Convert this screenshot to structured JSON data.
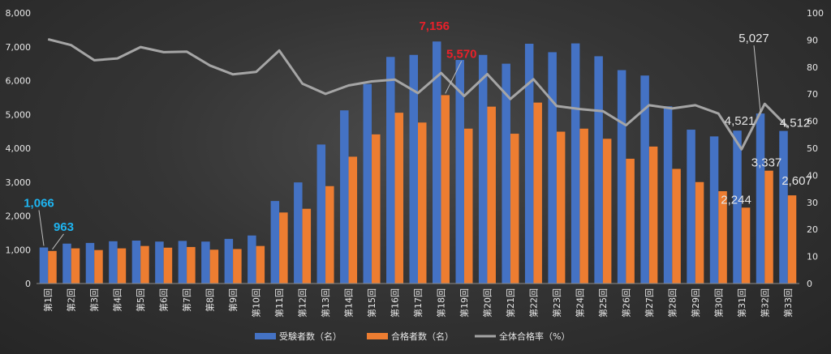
{
  "chart_data": {
    "type": "bar",
    "title": "",
    "xlabel": "",
    "ylabel": "",
    "ylim": [
      0,
      8000
    ],
    "y2lim": [
      0,
      100
    ],
    "yticks": [
      "0",
      "1,000",
      "2,000",
      "3,000",
      "4,000",
      "5,000",
      "6,000",
      "7,000",
      "8,000"
    ],
    "y2ticks": [
      "0",
      "10",
      "20",
      "30",
      "40",
      "50",
      "60",
      "70",
      "80",
      "90",
      "100"
    ],
    "categories": [
      "第1回",
      "第2回",
      "第3回",
      "第4回",
      "第5回",
      "第6回",
      "第7回",
      "第8回",
      "第9回",
      "第10回",
      "第11回",
      "第12回",
      "第13回",
      "第14回",
      "第15回",
      "第16回",
      "第17回",
      "第18回",
      "第19回",
      "第20回",
      "第21回",
      "第22回",
      "第23回",
      "第24回",
      "第25回",
      "第26回",
      "第27回",
      "第28回",
      "第29回",
      "第30回",
      "第31回",
      "第32回",
      "第33回"
    ],
    "series": [
      {
        "name": "受験者数（名）",
        "kind": "bar",
        "axis": "left",
        "color": "#4472C4",
        "values": [
          1066,
          1180,
          1200,
          1250,
          1270,
          1240,
          1260,
          1240,
          1320,
          1420,
          2440,
          2990,
          4110,
          5120,
          5900,
          6700,
          6760,
          7156,
          6610,
          6760,
          6500,
          7090,
          6840,
          7100,
          6720,
          6310,
          6150,
          5240,
          4550,
          4350,
          4521,
          5027,
          4512
        ]
      },
      {
        "name": "合格者数（名）",
        "kind": "bar",
        "axis": "left",
        "color": "#ED7D31",
        "values": [
          963,
          1040,
          990,
          1040,
          1110,
          1060,
          1080,
          1000,
          1020,
          1110,
          2100,
          2210,
          2880,
          3750,
          4410,
          5050,
          4760,
          5570,
          4580,
          5230,
          4430,
          5350,
          4490,
          4580,
          4280,
          3690,
          4050,
          3390,
          3000,
          2730,
          2244,
          3337,
          2607
        ]
      },
      {
        "name": "全体合格率（%）",
        "kind": "line",
        "axis": "right",
        "color": "#A5A5A5",
        "values": [
          90.3,
          88.1,
          82.5,
          83.2,
          87.4,
          85.5,
          85.7,
          80.6,
          77.3,
          78.2,
          86.1,
          73.9,
          70.1,
          73.2,
          74.7,
          75.4,
          70.4,
          77.8,
          69.3,
          77.4,
          68.2,
          75.5,
          65.6,
          64.5,
          63.7,
          58.5,
          65.9,
          64.7,
          65.9,
          62.8,
          49.6,
          66.4,
          57.8
        ]
      }
    ],
    "annotations": [
      {
        "text": "1,066",
        "series": 0,
        "index": 0,
        "color": "#1EB4F0"
      },
      {
        "text": "963",
        "series": 1,
        "index": 0,
        "color": "#1EB4F0"
      },
      {
        "text": "7,156",
        "series": 0,
        "index": 17,
        "color": "#E8202A"
      },
      {
        "text": "5,570",
        "series": 1,
        "index": 17,
        "color": "#E8202A"
      },
      {
        "text": "4,521",
        "series": 0,
        "index": 30,
        "color": "#E6E6E6"
      },
      {
        "text": "5,027",
        "series": 0,
        "index": 31,
        "color": "#E6E6E6"
      },
      {
        "text": "4,512",
        "series": 0,
        "index": 32,
        "color": "#E6E6E6"
      },
      {
        "text": "2,244",
        "series": 1,
        "index": 30,
        "color": "#E6E6E6"
      },
      {
        "text": "3,337",
        "series": 1,
        "index": 31,
        "color": "#E6E6E6"
      },
      {
        "text": "2,607",
        "series": 1,
        "index": 32,
        "color": "#E6E6E6"
      }
    ],
    "grid": false,
    "legend": "bottom"
  }
}
